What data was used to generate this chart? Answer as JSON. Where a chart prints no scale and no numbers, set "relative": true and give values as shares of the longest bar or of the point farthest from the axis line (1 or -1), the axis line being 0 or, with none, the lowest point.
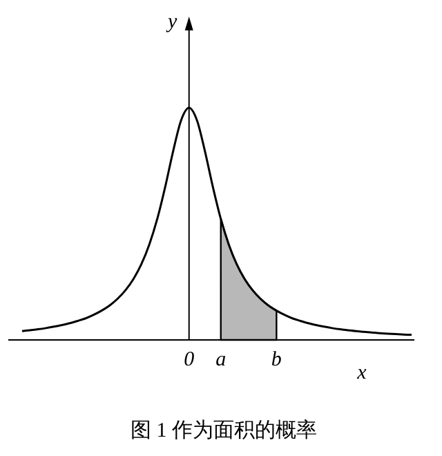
{
  "chart_data": {
    "type": "line",
    "title": "图 1 作为面积的概率",
    "xlabel": "x",
    "ylabel": "y",
    "relative": true,
    "categories": [
      null,
      null,
      null,
      null,
      null,
      null,
      null,
      null,
      null,
      null,
      null,
      null,
      null,
      null,
      null,
      null,
      null,
      null,
      null,
      null,
      null,
      "0",
      null,
      null,
      null,
      "a",
      null,
      null,
      null,
      null,
      null,
      null,
      "b",
      null,
      null,
      null,
      null,
      null,
      null,
      null,
      null,
      null,
      null,
      null,
      null,
      null,
      null,
      null,
      null,
      null
    ],
    "series": [
      {
        "color": "#000000",
        "values": [
          0.038,
          0.042,
          0.046,
          0.051,
          0.057,
          0.064,
          0.072,
          0.082,
          0.093,
          0.108,
          0.126,
          0.148,
          0.177,
          0.214,
          0.262,
          0.326,
          0.411,
          0.521,
          0.659,
          0.813,
          0.946,
          1,
          0.946,
          0.813,
          0.659,
          0.521,
          0.411,
          0.326,
          0.262,
          0.214,
          0.177,
          0.148,
          0.126,
          0.108,
          0.093,
          0.082,
          0.072,
          0.064,
          0.057,
          0.051,
          0.046,
          0.042,
          0.038,
          0.035,
          0.032,
          0.029,
          0.027,
          0.025,
          0.023,
          0.022
        ]
      },
      {
        "type": "area",
        "color": "#b8b8b8",
        "values": [
          null,
          null,
          null,
          null,
          null,
          null,
          null,
          null,
          null,
          null,
          null,
          null,
          null,
          null,
          null,
          null,
          null,
          null,
          null,
          null,
          null,
          null,
          null,
          null,
          null,
          0.521,
          0.411,
          0.326,
          0.262,
          0.214,
          0.177,
          0.148,
          0.126,
          null,
          null,
          null,
          null,
          null,
          null,
          null,
          null,
          null,
          null,
          null,
          null,
          null,
          null,
          null,
          null,
          null
        ]
      }
    ]
  }
}
